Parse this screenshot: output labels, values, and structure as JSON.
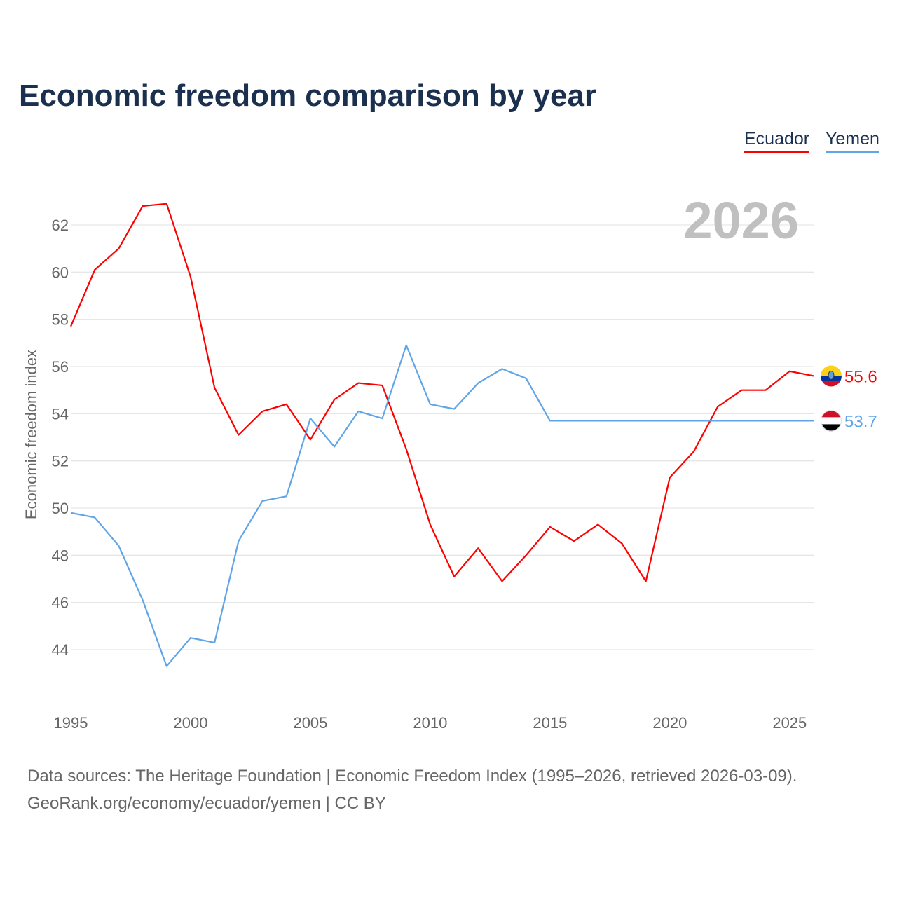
{
  "title": "Economic freedom comparison by year",
  "legend": [
    "Ecuador",
    "Yemen"
  ],
  "year_label": "2026",
  "source_line1": "Data sources: The Heritage Foundation | Economic Freedom Index (1995–2026, retrieved 2026-03-09).",
  "source_line2": "GeoRank.org/economy/ecuador/yemen | CC BY",
  "chart_data": {
    "type": "line",
    "title": "Economic freedom comparison by year",
    "xlabel": "",
    "ylabel": "Economic freedom index",
    "xlim": [
      1995,
      2026
    ],
    "ylim": [
      42,
      63.8
    ],
    "xticks": [
      1995,
      2000,
      2005,
      2010,
      2015,
      2020,
      2025
    ],
    "yticks": [
      44,
      46,
      48,
      50,
      52,
      54,
      56,
      58,
      60,
      62
    ],
    "grid": true,
    "legend_placement": "top-right",
    "x": [
      1995,
      1996,
      1997,
      1998,
      1999,
      2000,
      2001,
      2002,
      2003,
      2004,
      2005,
      2006,
      2007,
      2008,
      2009,
      2010,
      2011,
      2012,
      2013,
      2014,
      2015,
      2016,
      2017,
      2018,
      2019,
      2020,
      2021,
      2022,
      2023,
      2024,
      2025,
      2026
    ],
    "series": [
      {
        "name": "Ecuador",
        "color": "#ff0000",
        "end_label": "55.6",
        "values": [
          57.7,
          60.1,
          61.0,
          62.8,
          62.9,
          59.8,
          55.1,
          53.1,
          54.1,
          54.4,
          52.9,
          54.6,
          55.3,
          55.2,
          52.5,
          49.3,
          47.1,
          48.3,
          46.9,
          48.0,
          49.2,
          48.6,
          49.3,
          48.5,
          46.9,
          51.3,
          52.4,
          54.3,
          55.0,
          55.0,
          55.8,
          55.6
        ]
      },
      {
        "name": "Yemen",
        "color": "#60a5e8",
        "end_label": "53.7",
        "values": [
          49.8,
          49.6,
          48.4,
          46.1,
          43.3,
          44.5,
          44.3,
          48.6,
          50.3,
          50.5,
          53.8,
          52.6,
          54.1,
          53.8,
          56.9,
          54.4,
          54.2,
          55.3,
          55.9,
          55.5,
          53.7,
          53.7,
          53.7,
          53.7,
          53.7,
          53.7,
          53.7,
          53.7,
          53.7,
          53.7,
          53.7,
          53.7
        ]
      }
    ]
  }
}
